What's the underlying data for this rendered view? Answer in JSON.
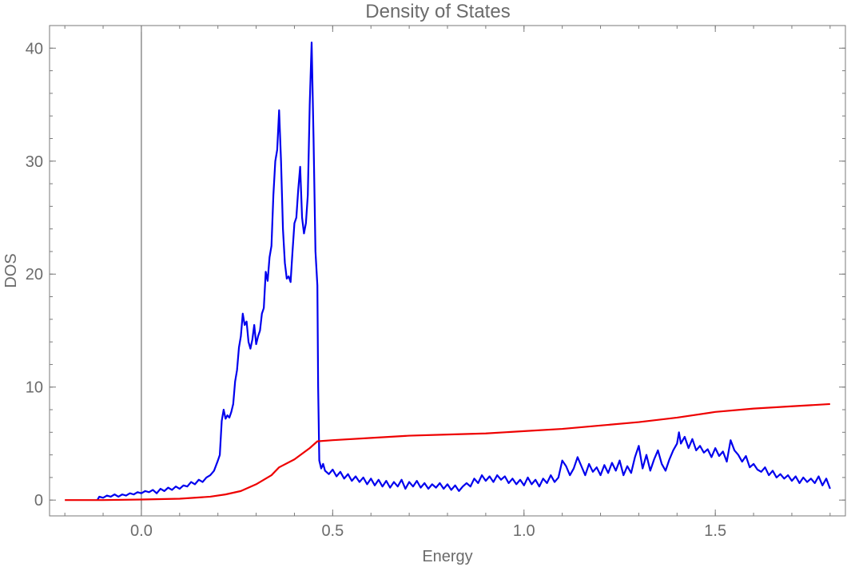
{
  "chart_data": {
    "type": "line",
    "title": "Density of States",
    "xlabel": "Energy",
    "ylabel": "DOS",
    "xlim": [
      -0.24,
      1.84
    ],
    "ylim": [
      -1.4,
      42.0
    ],
    "xticks": [
      0.0,
      0.5,
      1.0,
      1.5
    ],
    "xtick_labels": [
      "0.0",
      "0.5",
      "1.0",
      "1.5"
    ],
    "yticks": [
      0,
      10,
      20,
      30,
      40
    ],
    "ytick_labels": [
      "0",
      "10",
      "20",
      "30",
      "40"
    ],
    "grid": false,
    "frame_color": "#7a7a7a",
    "series": [
      {
        "color": "#0000ee",
        "points": [
          [
            -0.115,
            0.0
          ],
          [
            -0.11,
            0.3
          ],
          [
            -0.1,
            0.2
          ],
          [
            -0.09,
            0.4
          ],
          [
            -0.08,
            0.3
          ],
          [
            -0.07,
            0.5
          ],
          [
            -0.06,
            0.3
          ],
          [
            -0.05,
            0.5
          ],
          [
            -0.04,
            0.4
          ],
          [
            -0.03,
            0.6
          ],
          [
            -0.02,
            0.5
          ],
          [
            -0.01,
            0.7
          ],
          [
            0.0,
            0.6
          ],
          [
            0.01,
            0.8
          ],
          [
            0.02,
            0.7
          ],
          [
            0.03,
            0.9
          ],
          [
            0.04,
            0.6
          ],
          [
            0.05,
            1.0
          ],
          [
            0.06,
            0.8
          ],
          [
            0.07,
            1.1
          ],
          [
            0.08,
            0.9
          ],
          [
            0.09,
            1.2
          ],
          [
            0.1,
            1.0
          ],
          [
            0.11,
            1.3
          ],
          [
            0.12,
            1.2
          ],
          [
            0.13,
            1.6
          ],
          [
            0.14,
            1.4
          ],
          [
            0.15,
            1.8
          ],
          [
            0.16,
            1.6
          ],
          [
            0.17,
            2.0
          ],
          [
            0.18,
            2.2
          ],
          [
            0.19,
            2.6
          ],
          [
            0.2,
            3.5
          ],
          [
            0.205,
            4.0
          ],
          [
            0.21,
            7.0
          ],
          [
            0.215,
            8.0
          ],
          [
            0.22,
            7.2
          ],
          [
            0.225,
            7.5
          ],
          [
            0.23,
            7.3
          ],
          [
            0.235,
            7.8
          ],
          [
            0.24,
            8.5
          ],
          [
            0.245,
            10.5
          ],
          [
            0.25,
            11.5
          ],
          [
            0.255,
            13.5
          ],
          [
            0.26,
            14.5
          ],
          [
            0.265,
            16.5
          ],
          [
            0.27,
            15.5
          ],
          [
            0.275,
            15.8
          ],
          [
            0.28,
            14.0
          ],
          [
            0.285,
            13.4
          ],
          [
            0.29,
            14.2
          ],
          [
            0.295,
            15.5
          ],
          [
            0.3,
            13.8
          ],
          [
            0.305,
            14.5
          ],
          [
            0.31,
            15.0
          ],
          [
            0.315,
            16.5
          ],
          [
            0.32,
            17.0
          ],
          [
            0.325,
            20.2
          ],
          [
            0.33,
            19.4
          ],
          [
            0.335,
            21.5
          ],
          [
            0.34,
            22.5
          ],
          [
            0.345,
            27.0
          ],
          [
            0.35,
            30.0
          ],
          [
            0.355,
            31.0
          ],
          [
            0.36,
            34.5
          ],
          [
            0.365,
            30.0
          ],
          [
            0.37,
            24.0
          ],
          [
            0.375,
            21.0
          ],
          [
            0.38,
            19.6
          ],
          [
            0.385,
            19.8
          ],
          [
            0.39,
            19.3
          ],
          [
            0.395,
            22.0
          ],
          [
            0.4,
            24.5
          ],
          [
            0.405,
            25.0
          ],
          [
            0.41,
            27.5
          ],
          [
            0.415,
            29.5
          ],
          [
            0.42,
            25.0
          ],
          [
            0.425,
            23.6
          ],
          [
            0.43,
            24.5
          ],
          [
            0.435,
            27.0
          ],
          [
            0.44,
            35.0
          ],
          [
            0.445,
            40.5
          ],
          [
            0.45,
            32.0
          ],
          [
            0.455,
            22.0
          ],
          [
            0.46,
            19.0
          ],
          [
            0.462,
            10.0
          ],
          [
            0.465,
            3.5
          ],
          [
            0.47,
            2.8
          ],
          [
            0.475,
            3.2
          ],
          [
            0.48,
            2.6
          ],
          [
            0.49,
            2.3
          ],
          [
            0.5,
            2.7
          ],
          [
            0.51,
            2.1
          ],
          [
            0.52,
            2.5
          ],
          [
            0.53,
            1.9
          ],
          [
            0.54,
            2.3
          ],
          [
            0.55,
            1.7
          ],
          [
            0.56,
            2.1
          ],
          [
            0.57,
            1.6
          ],
          [
            0.58,
            2.0
          ],
          [
            0.59,
            1.4
          ],
          [
            0.6,
            1.9
          ],
          [
            0.61,
            1.3
          ],
          [
            0.62,
            1.8
          ],
          [
            0.63,
            1.2
          ],
          [
            0.64,
            1.7
          ],
          [
            0.65,
            1.1
          ],
          [
            0.66,
            1.6
          ],
          [
            0.67,
            1.2
          ],
          [
            0.68,
            1.8
          ],
          [
            0.69,
            1.0
          ],
          [
            0.7,
            1.6
          ],
          [
            0.71,
            1.2
          ],
          [
            0.72,
            1.7
          ],
          [
            0.73,
            1.1
          ],
          [
            0.74,
            1.5
          ],
          [
            0.75,
            1.0
          ],
          [
            0.76,
            1.4
          ],
          [
            0.77,
            1.1
          ],
          [
            0.78,
            1.5
          ],
          [
            0.79,
            1.0
          ],
          [
            0.8,
            1.4
          ],
          [
            0.81,
            0.9
          ],
          [
            0.82,
            1.3
          ],
          [
            0.83,
            0.8
          ],
          [
            0.84,
            1.2
          ],
          [
            0.85,
            1.5
          ],
          [
            0.86,
            1.2
          ],
          [
            0.87,
            1.9
          ],
          [
            0.88,
            1.5
          ],
          [
            0.89,
            2.2
          ],
          [
            0.9,
            1.7
          ],
          [
            0.91,
            2.1
          ],
          [
            0.92,
            1.6
          ],
          [
            0.93,
            2.2
          ],
          [
            0.94,
            1.8
          ],
          [
            0.95,
            2.1
          ],
          [
            0.96,
            1.5
          ],
          [
            0.97,
            1.9
          ],
          [
            0.98,
            1.4
          ],
          [
            0.99,
            1.8
          ],
          [
            1.0,
            1.3
          ],
          [
            1.01,
            2.0
          ],
          [
            1.02,
            1.4
          ],
          [
            1.03,
            1.8
          ],
          [
            1.04,
            1.2
          ],
          [
            1.05,
            1.9
          ],
          [
            1.06,
            1.5
          ],
          [
            1.07,
            2.2
          ],
          [
            1.08,
            1.6
          ],
          [
            1.09,
            2.0
          ],
          [
            1.1,
            3.5
          ],
          [
            1.11,
            3.0
          ],
          [
            1.12,
            2.2
          ],
          [
            1.13,
            2.8
          ],
          [
            1.14,
            3.8
          ],
          [
            1.15,
            3.0
          ],
          [
            1.16,
            2.2
          ],
          [
            1.17,
            3.2
          ],
          [
            1.18,
            2.5
          ],
          [
            1.19,
            2.9
          ],
          [
            1.2,
            2.2
          ],
          [
            1.21,
            3.1
          ],
          [
            1.22,
            2.4
          ],
          [
            1.23,
            3.3
          ],
          [
            1.24,
            2.6
          ],
          [
            1.25,
            3.5
          ],
          [
            1.26,
            2.2
          ],
          [
            1.27,
            3.0
          ],
          [
            1.28,
            2.4
          ],
          [
            1.29,
            3.8
          ],
          [
            1.3,
            4.8
          ],
          [
            1.31,
            2.8
          ],
          [
            1.32,
            4.0
          ],
          [
            1.33,
            2.6
          ],
          [
            1.34,
            3.6
          ],
          [
            1.35,
            4.4
          ],
          [
            1.36,
            3.2
          ],
          [
            1.37,
            2.6
          ],
          [
            1.38,
            3.6
          ],
          [
            1.39,
            4.4
          ],
          [
            1.4,
            5.0
          ],
          [
            1.405,
            6.0
          ],
          [
            1.41,
            5.0
          ],
          [
            1.42,
            5.6
          ],
          [
            1.43,
            4.6
          ],
          [
            1.44,
            5.4
          ],
          [
            1.45,
            4.4
          ],
          [
            1.46,
            4.8
          ],
          [
            1.47,
            4.2
          ],
          [
            1.48,
            4.5
          ],
          [
            1.49,
            3.8
          ],
          [
            1.5,
            4.6
          ],
          [
            1.51,
            3.9
          ],
          [
            1.52,
            4.3
          ],
          [
            1.53,
            3.4
          ],
          [
            1.54,
            5.3
          ],
          [
            1.55,
            4.4
          ],
          [
            1.56,
            4.0
          ],
          [
            1.57,
            3.4
          ],
          [
            1.58,
            3.9
          ],
          [
            1.59,
            2.9
          ],
          [
            1.6,
            3.2
          ],
          [
            1.61,
            2.7
          ],
          [
            1.62,
            2.5
          ],
          [
            1.63,
            2.9
          ],
          [
            1.64,
            2.2
          ],
          [
            1.65,
            2.6
          ],
          [
            1.66,
            2.0
          ],
          [
            1.67,
            2.3
          ],
          [
            1.68,
            1.9
          ],
          [
            1.69,
            2.2
          ],
          [
            1.7,
            1.7
          ],
          [
            1.71,
            2.1
          ],
          [
            1.72,
            1.5
          ],
          [
            1.73,
            2.0
          ],
          [
            1.74,
            1.6
          ],
          [
            1.75,
            1.9
          ],
          [
            1.76,
            1.5
          ],
          [
            1.77,
            2.1
          ],
          [
            1.78,
            1.3
          ],
          [
            1.79,
            1.9
          ],
          [
            1.8,
            1.0
          ]
        ]
      },
      {
        "color": "#ee0000",
        "points": [
          [
            -0.2,
            0.0
          ],
          [
            -0.1,
            0.0
          ],
          [
            0.0,
            0.05
          ],
          [
            0.1,
            0.12
          ],
          [
            0.18,
            0.3
          ],
          [
            0.22,
            0.5
          ],
          [
            0.26,
            0.8
          ],
          [
            0.3,
            1.4
          ],
          [
            0.34,
            2.2
          ],
          [
            0.36,
            2.9
          ],
          [
            0.4,
            3.6
          ],
          [
            0.44,
            4.6
          ],
          [
            0.46,
            5.2
          ],
          [
            0.5,
            5.3
          ],
          [
            0.6,
            5.5
          ],
          [
            0.7,
            5.7
          ],
          [
            0.8,
            5.8
          ],
          [
            0.9,
            5.9
          ],
          [
            1.0,
            6.1
          ],
          [
            1.1,
            6.3
          ],
          [
            1.2,
            6.6
          ],
          [
            1.3,
            6.9
          ],
          [
            1.4,
            7.3
          ],
          [
            1.5,
            7.8
          ],
          [
            1.6,
            8.1
          ],
          [
            1.7,
            8.3
          ],
          [
            1.8,
            8.5
          ]
        ]
      }
    ]
  }
}
